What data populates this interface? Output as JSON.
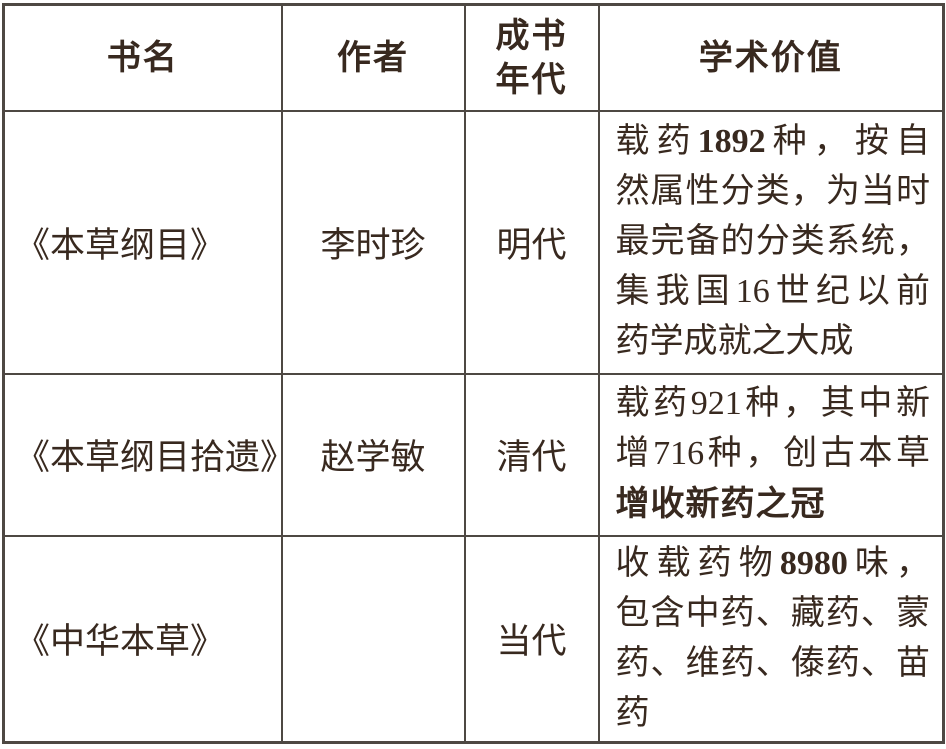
{
  "colors": {
    "background": "#ffffff",
    "text": "#38291f",
    "grid_border": "#4e4843"
  },
  "table": {
    "headers": [
      "书名",
      "作者",
      "成书\n年代",
      "学术价值"
    ],
    "rows": [
      {
        "book": "《本草纲目》",
        "author": "李时珍",
        "era": "明代",
        "value_lines": [
          {
            "justify": true,
            "segments": [
              {
                "text": "载药",
                "style": "normal"
              },
              {
                "text": "1892",
                "style": "bold-serif"
              },
              {
                "text": "种，按自",
                "style": "normal"
              }
            ]
          },
          {
            "justify": true,
            "segments": [
              {
                "text": "然属性分类，为当时",
                "style": "normal"
              }
            ]
          },
          {
            "justify": true,
            "segments": [
              {
                "text": "最完备的分类系统，",
                "style": "normal"
              }
            ]
          },
          {
            "justify": true,
            "segments": [
              {
                "text": "集我国16世纪以前",
                "style": "normal"
              }
            ]
          },
          {
            "justify": false,
            "segments": [
              {
                "text": "药学成就之大成",
                "style": "normal"
              }
            ]
          }
        ]
      },
      {
        "book": "《本草纲目拾遗》",
        "author": "赵学敏",
        "era": "清代",
        "value_lines": [
          {
            "justify": true,
            "segments": [
              {
                "text": "载药921种，其中新",
                "style": "normal"
              }
            ]
          },
          {
            "justify": true,
            "segments": [
              {
                "text": "增716种，创古本草",
                "style": "normal"
              }
            ]
          },
          {
            "justify": false,
            "segments": [
              {
                "text": "增收新药之冠",
                "style": "bold-sans"
              }
            ]
          }
        ]
      },
      {
        "book": "《中华本草》",
        "author": "",
        "era": "当代",
        "value_lines": [
          {
            "justify": true,
            "segments": [
              {
                "text": "收载药物",
                "style": "normal"
              },
              {
                "text": "8980",
                "style": "bold-serif"
              },
              {
                "text": "味，",
                "style": "normal"
              }
            ]
          },
          {
            "justify": true,
            "segments": [
              {
                "text": "包含中药、藏药、蒙",
                "style": "normal"
              }
            ]
          },
          {
            "justify": true,
            "segments": [
              {
                "text": "药、维药、傣药、苗",
                "style": "normal"
              }
            ]
          },
          {
            "justify": false,
            "segments": [
              {
                "text": "药",
                "style": "normal"
              }
            ]
          }
        ]
      }
    ]
  }
}
